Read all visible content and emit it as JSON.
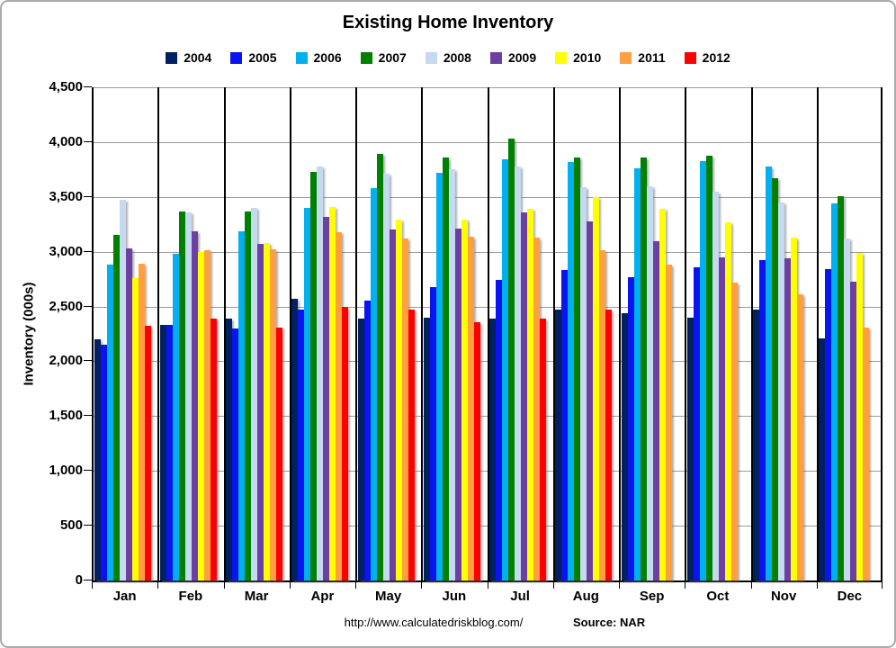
{
  "title": "Existing Home Inventory",
  "y_axis": {
    "title": "Inventory (000s)",
    "tick_labels": [
      "4,500",
      "4,000",
      "3,500",
      "3,000",
      "2,500",
      "2,000",
      "1,500",
      "1,000",
      "500",
      "0"
    ],
    "max": 4500,
    "step": 500
  },
  "footer": {
    "url": "http://www.calculatedriskblog.com/",
    "source": "Source: NAR"
  },
  "chart_data": {
    "type": "bar",
    "title": "Existing Home Inventory",
    "xlabel": "",
    "ylabel": "Inventory (000s)",
    "ylim": [
      0,
      4500
    ],
    "grid": true,
    "legend_position": "top",
    "categories": [
      "Jan",
      "Feb",
      "Mar",
      "Apr",
      "May",
      "Jun",
      "Jul",
      "Aug",
      "Sep",
      "Oct",
      "Nov",
      "Dec"
    ],
    "series": [
      {
        "name": "2004",
        "color": "#002060",
        "values": [
          2200,
          2330,
          2390,
          2570,
          2390,
          2400,
          2390,
          2470,
          2440,
          2400,
          2470,
          2210
        ]
      },
      {
        "name": "2005",
        "color": "#0a14f0",
        "values": [
          2150,
          2330,
          2300,
          2470,
          2550,
          2680,
          2740,
          2830,
          2770,
          2860,
          2920,
          2840
        ]
      },
      {
        "name": "2006",
        "color": "#00b0f0",
        "values": [
          2880,
          2980,
          3190,
          3400,
          3580,
          3720,
          3840,
          3820,
          3760,
          3830,
          3780,
          3440
        ]
      },
      {
        "name": "2007",
        "color": "#008000",
        "values": [
          3150,
          3370,
          3370,
          3730,
          3890,
          3860,
          4030,
          3860,
          3860,
          3880,
          3670,
          3510
        ]
      },
      {
        "name": "2008",
        "color": "#c5d9f1",
        "values": [
          3470,
          3360,
          3400,
          3780,
          3710,
          3750,
          3780,
          3590,
          3600,
          3550,
          3450,
          3120
        ]
      },
      {
        "name": "2009",
        "color": "#6e3fa3",
        "values": [
          3030,
          3190,
          3070,
          3320,
          3200,
          3210,
          3360,
          3280,
          3100,
          2950,
          2940,
          2730
        ]
      },
      {
        "name": "2010",
        "color": "#ffff00",
        "values": [
          2760,
          3000,
          3080,
          3410,
          3290,
          3290,
          3390,
          3500,
          3390,
          3270,
          3130,
          2990
        ]
      },
      {
        "name": "2011",
        "color": "#ffa040",
        "values": [
          2890,
          3010,
          3020,
          3180,
          3120,
          3140,
          3130,
          3010,
          2880,
          2720,
          2610,
          2310
        ]
      },
      {
        "name": "2012",
        "color": "#fe0000",
        "values": [
          2320,
          2390,
          2310,
          2500,
          2470,
          2360,
          2390,
          2470,
          null,
          null,
          null,
          null
        ]
      }
    ]
  }
}
